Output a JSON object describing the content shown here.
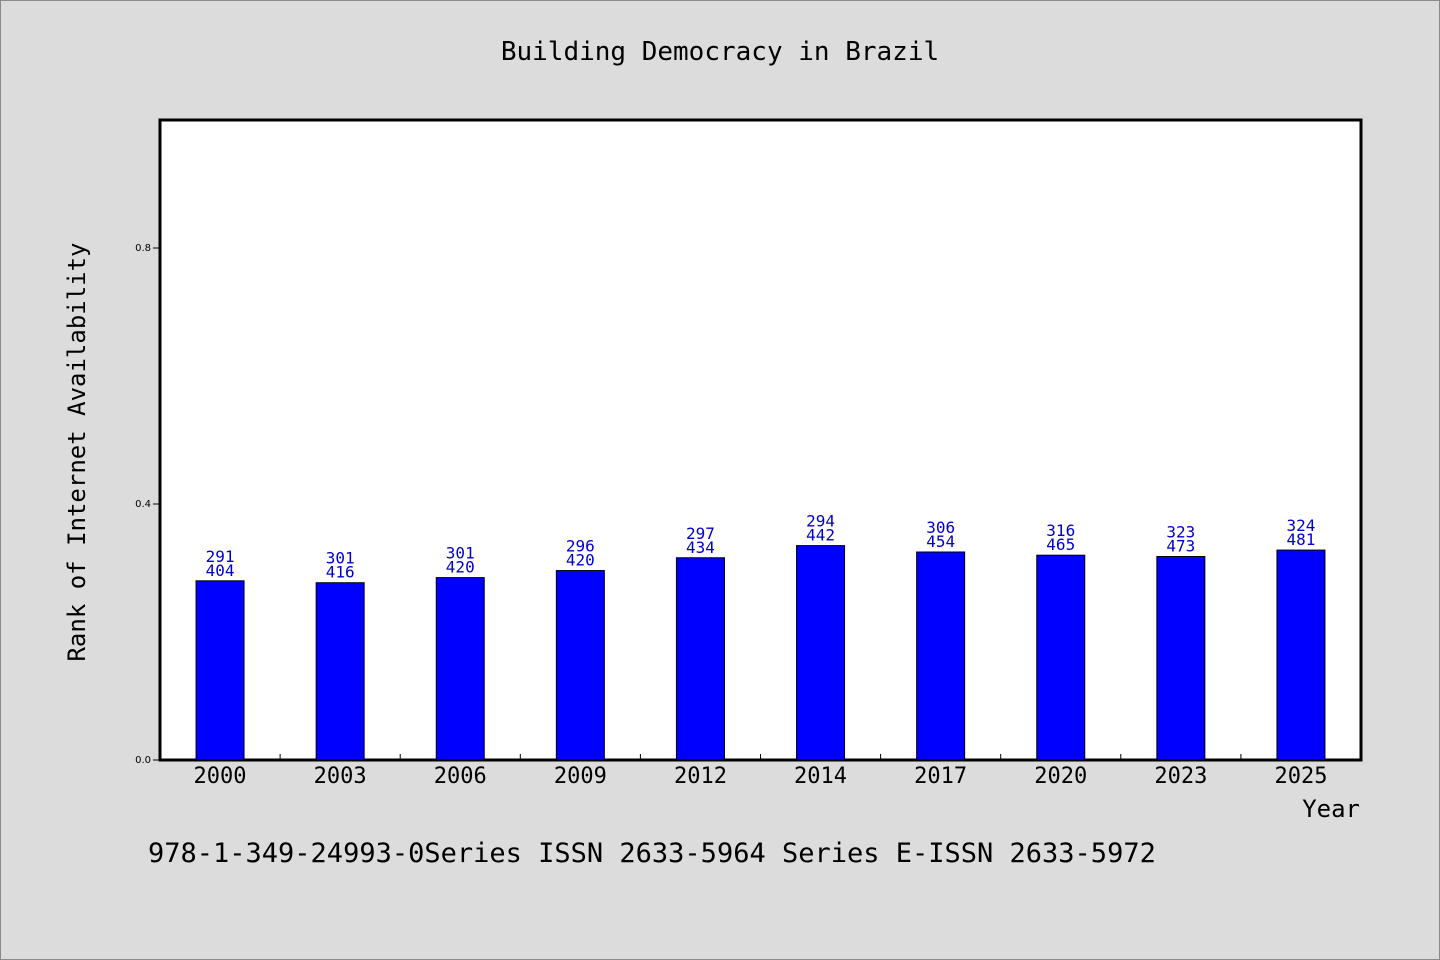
{
  "chart_data": {
    "type": "bar",
    "title": "Building Democracy in Brazil",
    "xlabel": "Year",
    "ylabel": "Rank of Internet Availability",
    "categories": [
      "2000",
      "2003",
      "2006",
      "2009",
      "2012",
      "2014",
      "2017",
      "2020",
      "2023",
      "2025"
    ],
    "values": [
      0.28,
      0.277,
      0.285,
      0.296,
      0.316,
      0.335,
      0.325,
      0.32,
      0.318,
      0.328
    ],
    "labels_top": [
      "291",
      "301",
      "301",
      "296",
      "297",
      "294",
      "306",
      "316",
      "323",
      "324"
    ],
    "labels_bottom": [
      "404",
      "416",
      "420",
      "420",
      "434",
      "442",
      "454",
      "465",
      "473",
      "481"
    ],
    "ylim": [
      0,
      1.0
    ],
    "yticks": [
      "0.0",
      "0.4",
      "0.8"
    ],
    "ytick_values": [
      0,
      0.4,
      0.8
    ],
    "bar_color": "#0000ff",
    "label_color": "#0000cc",
    "grid": false
  },
  "footer": {
    "text": "978-1-349-24993-0Series ISSN 2633-5964 Series E-ISSN 2633-5972"
  }
}
